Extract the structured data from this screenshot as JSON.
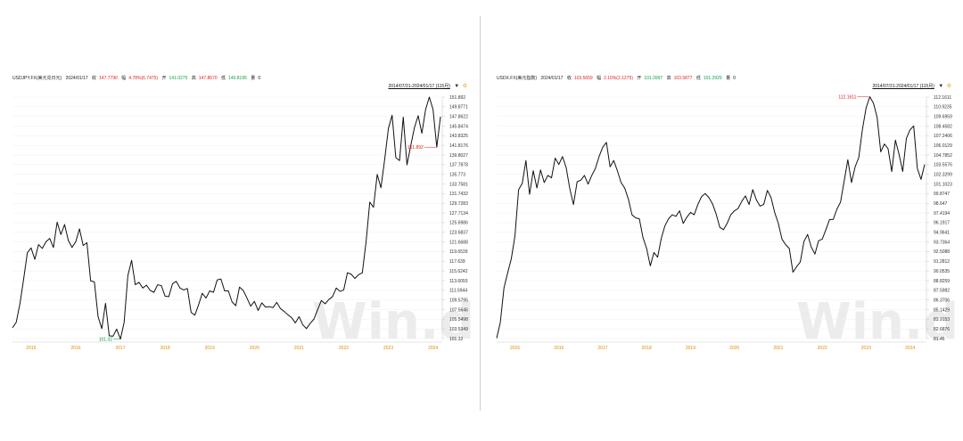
{
  "panels": [
    {
      "info": {
        "name": "USDJPY.FX(美元兑日元)",
        "date": "2024/01/17",
        "close_label": "收",
        "close_value": "147.7790",
        "change_label": "幅",
        "change_value": "4.78%(6.7475)",
        "open_label": "开",
        "open_value": "141.0275",
        "high_label": "高",
        "high_value": "147.8670",
        "low_label": "低",
        "low_value": "140.8195",
        "vol_label": "量",
        "vol_value": "0"
      },
      "range_label": "2014/07/31-2024/01/17 (115月)",
      "arrow_icon": "chevron-down-icon",
      "settings_icon": "settings-icon",
      "watermark": "Win.d",
      "max_label": "151.892",
      "min_label": "101.32"
    },
    {
      "info": {
        "name": "USDX.FX(美元指数)",
        "date": "2024/01/17",
        "close_label": "收",
        "close_value": "103.5659",
        "change_label": "幅",
        "change_value": "2.10%(2.1275)",
        "open_label": "开",
        "open_value": "101.3997",
        "high_label": "高",
        "high_value": "103.5877",
        "low_label": "低",
        "low_value": "101.2929",
        "vol_label": "量",
        "vol_value": "0"
      },
      "range_label": "2014/07/31-2024/01/17 (115月)",
      "arrow_icon": "chevron-down-icon",
      "settings_icon": "settings-icon",
      "watermark": "Win.d",
      "max_label": "112.1611",
      "min_label": ""
    }
  ],
  "chart_data": [
    {
      "type": "line",
      "series": [
        {
          "values": [
            103.6,
            104.7,
            108.6,
            113.8,
            119.3,
            120.3,
            117.9,
            121.0,
            120.2,
            121.6,
            122.3,
            120.4,
            125.7,
            123.1,
            125.2,
            121.9,
            120.4,
            121.6,
            124.3,
            120.8,
            121.4,
            113.4,
            113.2,
            105.9,
            103.4,
            108.7,
            101.9,
            101.8,
            103.3,
            101.2,
            104.7,
            114.5,
            117.7,
            112.6,
            113.1,
            111.9,
            112.5,
            111.4,
            111.0,
            112.6,
            112.4,
            110.2,
            110.1,
            112.8,
            113.3,
            111.9,
            111.5,
            111.8,
            106.8,
            106.2,
            108.4,
            110.8,
            109.8,
            111.3,
            111.0,
            113.6,
            113.8,
            111.3,
            111.3,
            109.0,
            108.2,
            112.1,
            111.4,
            109.8,
            108.1,
            109.1,
            107.2,
            108.8,
            107.9,
            108.0,
            107.8,
            108.9,
            107.6,
            107.0,
            106.3,
            105.7,
            104.6,
            105.9,
            104.2,
            103.4,
            104.5,
            105.4,
            107.4,
            109.3,
            108.6,
            109.5,
            110.1,
            111.9,
            111.2,
            111.5,
            115.1,
            114.8,
            113.9,
            114.7,
            115.1,
            121.5,
            129.9,
            128.8,
            135.7,
            132.9,
            138.8,
            145.3,
            148.1,
            139.2,
            138.6,
            147.7,
            137.7,
            141.7,
            145.5,
            148.0,
            144.3,
            149.3,
            151.9,
            149.3,
            141.4,
            147.8
          ],
          "color": "#111111"
        }
      ],
      "xticks": [
        "2015",
        "2016",
        "2017",
        "2018",
        "2019",
        "2020",
        "2021",
        "2022",
        "2023",
        "2024"
      ],
      "xtick_index": [
        5,
        17,
        29,
        41,
        53,
        65,
        77,
        89,
        101,
        113
      ],
      "yticks": [
        "151.892",
        "149.8771",
        "147.8622",
        "145.8474",
        "143.8325",
        "141.8176",
        "139.8027",
        "137.7878",
        "135.773",
        "133.7581",
        "131.7432",
        "129.7283",
        "127.7134",
        "125.6986",
        "123.6837",
        "121.6688",
        "119.6539",
        "117.639",
        "115.6242",
        "113.6093",
        "111.5944",
        "109.5795",
        "107.5646",
        "105.5498",
        "103.5349",
        "101.32"
      ],
      "ylim": [
        101.32,
        151.892
      ],
      "max_index": 114,
      "min_index": 29,
      "grid": true
    },
    {
      "type": "line",
      "series": [
        {
          "values": [
            81.5,
            83.5,
            87.9,
            89.8,
            91.6,
            94.5,
            100.4,
            101.2,
            104.1,
            99.8,
            102.8,
            100.6,
            102.9,
            101.3,
            102.2,
            101.9,
            104.4,
            103.6,
            104.6,
            103.2,
            100.5,
            98.5,
            101.4,
            101.6,
            102.2,
            101.1,
            102.2,
            103.1,
            104.6,
            105.8,
            106.4,
            103.3,
            104.1,
            102.8,
            101.3,
            100.6,
            99.2,
            97.2,
            96.8,
            96.7,
            94.3,
            92.9,
            90.7,
            92.4,
            91.8,
            94.2,
            95.8,
            96.7,
            97.2,
            97.0,
            97.7,
            96.1,
            96.9,
            97.5,
            97.2,
            98.5,
            99.5,
            99.9,
            99.4,
            98.6,
            97.3,
            95.6,
            95.3,
            96.1,
            97.2,
            97.7,
            98.0,
            98.9,
            99.6,
            98.5,
            100.4,
            99.1,
            98.3,
            98.5,
            100.3,
            99.4,
            97.5,
            96.1,
            94.1,
            93.4,
            92.9,
            89.9,
            90.6,
            91.2,
            93.8,
            94.7,
            93.1,
            92.2,
            93.9,
            94.1,
            95.3,
            96.6,
            96.6,
            97.9,
            98.8,
            101.5,
            104.2,
            101.3,
            103.3,
            104.5,
            108.1,
            110.8,
            112.2,
            111.4,
            109.6,
            105.2,
            106.2,
            105.6,
            102.7,
            106.7,
            104.9,
            102.7,
            106.9,
            108.0,
            108.5,
            103.1,
            101.7,
            103.6
          ],
          "color": "#111111"
        }
      ],
      "xticks": [
        "2015",
        "2016",
        "2017",
        "2018",
        "2019",
        "2020",
        "2021",
        "2022",
        "2023",
        "2024"
      ],
      "xtick_index": [
        5,
        17,
        29,
        41,
        53,
        65,
        77,
        89,
        101,
        113
      ],
      "yticks": [
        "112.1611",
        "110.9235",
        "109.6959",
        "108.4582",
        "107.2406",
        "106.0129",
        "104.7852",
        "103.5576",
        "102.3299",
        "101.1023",
        "99.8747",
        "98.647",
        "97.4194",
        "96.1917",
        "94.9641",
        "93.7364",
        "92.5088",
        "91.2812",
        "90.0535",
        "88.8259",
        "87.5982",
        "86.3706",
        "85.1429",
        "83.9153",
        "82.6876",
        "81.46"
      ],
      "ylim": [
        81.46,
        112.1611
      ],
      "max_index": 102,
      "min_index": null,
      "grid": true
    }
  ]
}
